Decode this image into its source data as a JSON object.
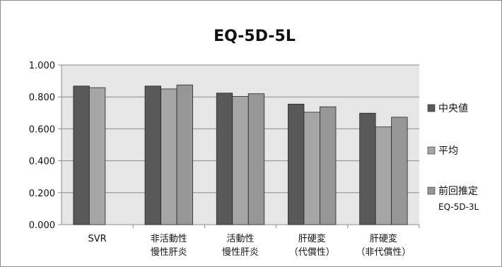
{
  "chart_data": {
    "type": "bar",
    "title": "EQ-5D-5L",
    "categories": [
      [
        "SVR"
      ],
      [
        "非活動性",
        "慢性肝炎"
      ],
      [
        "活動性",
        "慢性肝炎"
      ],
      [
        "肝硬変",
        "（代償性）"
      ],
      [
        "肝硬変",
        "（非代償性）"
      ]
    ],
    "series": [
      {
        "name": "中央値",
        "values": [
          0.868,
          0.868,
          0.824,
          0.755,
          0.698
        ],
        "color": "#595959"
      },
      {
        "name": "平均",
        "values": [
          0.858,
          0.85,
          0.803,
          0.704,
          0.612
        ],
        "color": "#a6a6a6"
      },
      {
        "name": "前回推定",
        "name_sub": "EQ-5D-3L",
        "values": [
          null,
          0.875,
          0.82,
          0.738,
          0.673
        ],
        "color": "#969696"
      }
    ],
    "ylim": [
      0,
      1.0
    ],
    "yticks": [
      "0.000",
      "0.200",
      "0.400",
      "0.600",
      "0.800",
      "1.000"
    ],
    "grid": true,
    "legend_position": "right"
  }
}
